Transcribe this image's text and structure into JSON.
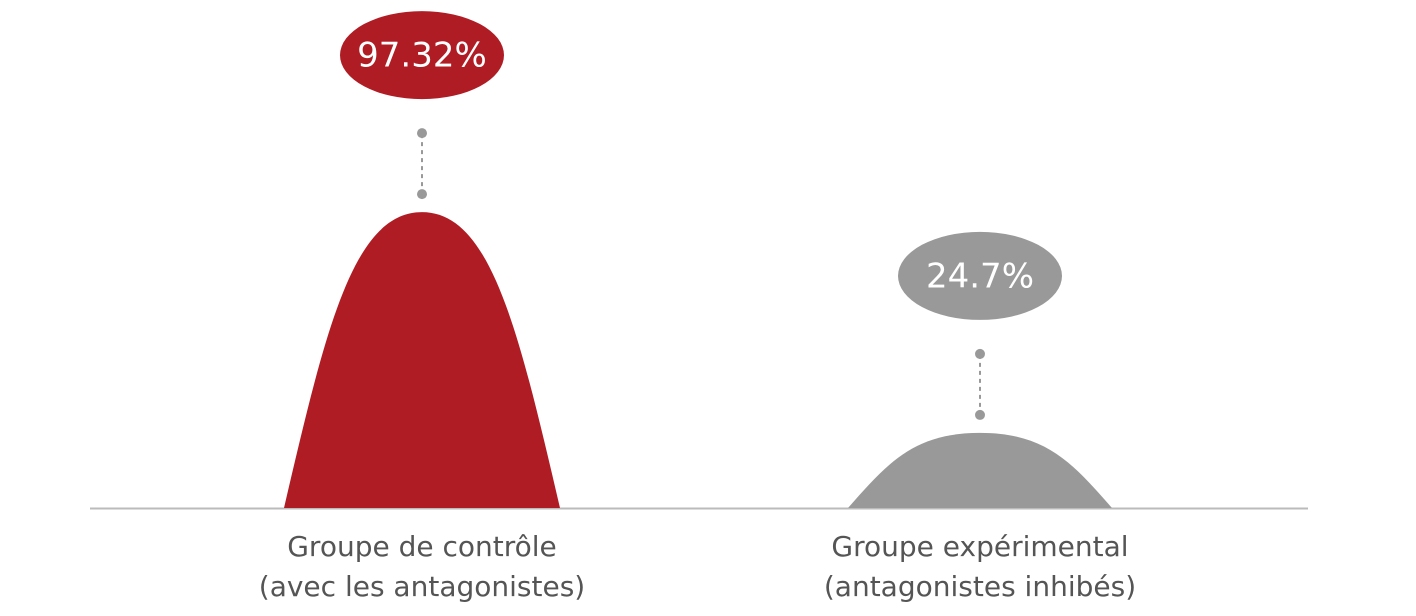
{
  "chart_data": {
    "type": "bell",
    "categories": [
      [
        "Groupe de contrôle",
        "(avec les antagonistes)"
      ],
      [
        "Groupe expérimental",
        "(antagonistes inhibés)"
      ]
    ],
    "values": [
      97.32,
      24.7
    ],
    "value_labels": [
      "97.32%",
      "24.7%"
    ],
    "colors": [
      "#b01c24",
      "#999999"
    ]
  }
}
